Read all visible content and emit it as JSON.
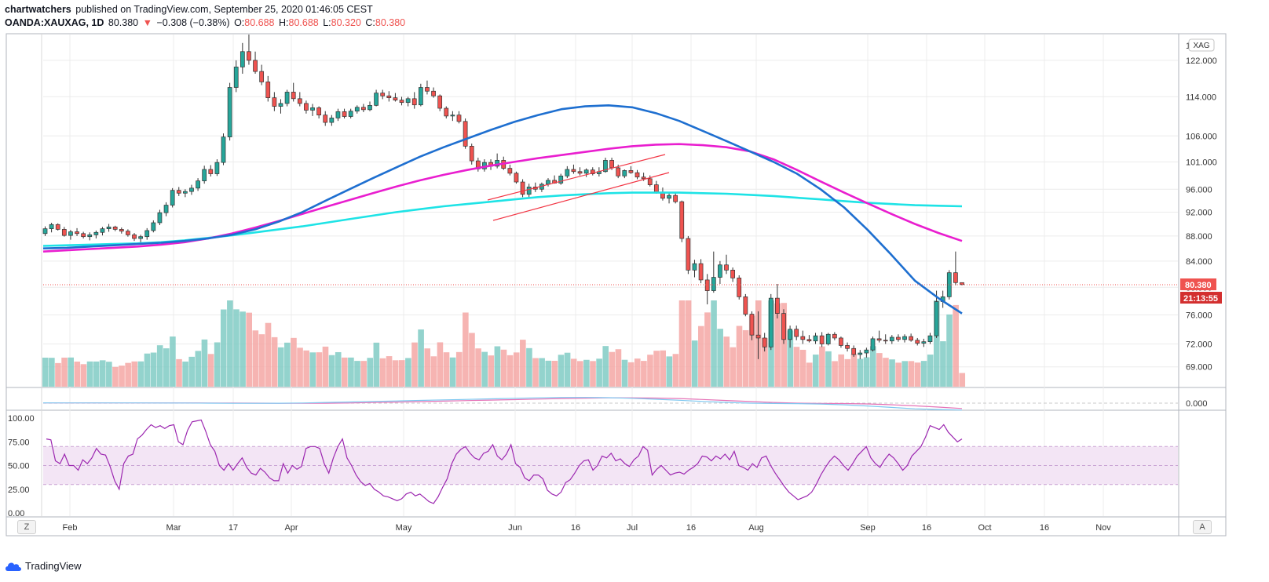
{
  "header": {
    "publisher": "chartwatchers",
    "published_text": "published on TradingView.com, September 25, 2020 01:46:05 CEST",
    "symbol": "OANDA:XAUXAG, 1D",
    "last": "80.380",
    "change_arrow": "▼",
    "change": "−0.308 (−0.38%)",
    "open_label": "O:",
    "open": "80.688",
    "high_label": "H:",
    "high": "80.688",
    "low_label": "L:",
    "low": "80.320",
    "close_label": "C:",
    "close": "80.380"
  },
  "footer": {
    "brand": "TradingView",
    "left_button": "Z",
    "right_button": "A"
  },
  "colors": {
    "up": "#26a69a",
    "down": "#ef5350",
    "ma50": "#1e6fd0",
    "ma100": "#e91ecf",
    "ma200": "#1ee3e6",
    "rsi": "#9c27b0",
    "rsi_band": "#e1bee7",
    "grid": "#ececec"
  },
  "chart_data": {
    "type": "candlestick",
    "symbol": "OANDA:XAUXAG",
    "interval": "1D",
    "currency_label": "XAG",
    "price_axis": {
      "scale": "log",
      "ticks": [
        "69.000",
        "72.000",
        "76.000",
        "80.000",
        "84.000",
        "88.000",
        "92.000",
        "96.000",
        "101.000",
        "106.000",
        "114.000",
        "122.000"
      ],
      "range": [
        66.5,
        128
      ]
    },
    "x_axis": {
      "ticks": [
        "Feb",
        "Mar",
        "17",
        "Apr",
        "May",
        "Jun",
        "16",
        "Jul",
        "16",
        "Aug",
        "Sep",
        "16",
        "Oct",
        "16",
        "Nov"
      ]
    },
    "last_price_label": "80.380",
    "countdown_label": "21:13:55",
    "candles": [
      [
        88.4,
        89.6,
        88.0,
        89.2
      ],
      [
        89.2,
        90.2,
        88.6,
        89.9
      ],
      [
        89.9,
        90.1,
        88.9,
        89.1
      ],
      [
        89.1,
        89.5,
        87.9,
        88.1
      ],
      [
        88.1,
        89.0,
        87.4,
        88.7
      ],
      [
        88.7,
        89.3,
        88.0,
        88.4
      ],
      [
        88.4,
        88.7,
        87.6,
        87.9
      ],
      [
        87.9,
        88.6,
        87.3,
        88.2
      ],
      [
        88.2,
        88.9,
        87.6,
        88.6
      ],
      [
        88.6,
        89.5,
        88.1,
        89.2
      ],
      [
        89.2,
        90.0,
        88.7,
        89.5
      ],
      [
        89.5,
        89.7,
        88.8,
        89.1
      ],
      [
        89.1,
        89.4,
        88.4,
        88.8
      ],
      [
        88.8,
        89.1,
        87.9,
        88.2
      ],
      [
        88.2,
        88.5,
        87.2,
        87.6
      ],
      [
        87.6,
        88.2,
        86.9,
        87.9
      ],
      [
        87.9,
        89.3,
        87.4,
        88.9
      ],
      [
        88.9,
        90.6,
        88.6,
        90.2
      ],
      [
        90.2,
        92.4,
        89.8,
        91.9
      ],
      [
        91.9,
        93.7,
        91.3,
        93.2
      ],
      [
        93.2,
        96.2,
        92.8,
        95.8
      ],
      [
        95.8,
        96.4,
        94.8,
        95.3
      ],
      [
        95.3,
        96.0,
        94.6,
        95.6
      ],
      [
        95.6,
        96.8,
        95.0,
        96.2
      ],
      [
        96.2,
        98.0,
        95.7,
        97.5
      ],
      [
        97.5,
        100.3,
        97.0,
        99.6
      ],
      [
        99.6,
        100.4,
        98.3,
        98.8
      ],
      [
        98.8,
        101.5,
        98.4,
        100.9
      ],
      [
        100.9,
        106.5,
        100.4,
        105.8
      ],
      [
        105.8,
        117.0,
        105.1,
        116.0
      ],
      [
        116.0,
        122.0,
        115.0,
        120.5
      ],
      [
        120.5,
        126.0,
        119.0,
        124.0
      ],
      [
        124.0,
        128.0,
        121.0,
        122.0
      ],
      [
        122.0,
        124.0,
        119.0,
        119.5
      ],
      [
        119.5,
        121.0,
        116.5,
        117.2
      ],
      [
        117.2,
        118.5,
        113.0,
        113.8
      ],
      [
        113.8,
        115.0,
        111.0,
        112.0
      ],
      [
        112.0,
        113.5,
        110.5,
        112.6
      ],
      [
        112.6,
        115.5,
        112.0,
        115.0
      ],
      [
        115.0,
        117.0,
        113.0,
        113.6
      ],
      [
        113.6,
        115.0,
        112.0,
        112.6
      ],
      [
        112.6,
        113.2,
        110.5,
        111.2
      ],
      [
        111.2,
        112.5,
        110.0,
        111.7
      ],
      [
        111.7,
        112.0,
        109.5,
        110.2
      ],
      [
        110.2,
        111.0,
        108.0,
        108.7
      ],
      [
        108.7,
        110.2,
        108.0,
        109.6
      ],
      [
        109.6,
        111.5,
        109.0,
        110.9
      ],
      [
        110.9,
        111.5,
        109.5,
        109.9
      ],
      [
        109.9,
        111.5,
        109.5,
        111.0
      ],
      [
        111.0,
        112.2,
        110.5,
        111.8
      ],
      [
        111.8,
        112.5,
        110.8,
        111.3
      ],
      [
        111.3,
        113.0,
        111.0,
        112.2
      ],
      [
        112.2,
        115.5,
        112.0,
        114.8
      ],
      [
        114.8,
        115.5,
        113.5,
        114.2
      ],
      [
        114.2,
        115.2,
        113.0,
        113.8
      ],
      [
        113.8,
        114.8,
        113.0,
        113.3
      ],
      [
        113.3,
        114.0,
        112.2,
        112.8
      ],
      [
        112.8,
        114.0,
        112.0,
        113.6
      ],
      [
        113.6,
        115.0,
        111.5,
        112.3
      ],
      [
        112.3,
        116.8,
        112.0,
        116.0
      ],
      [
        116.0,
        117.5,
        114.5,
        115.2
      ],
      [
        115.2,
        116.0,
        113.8,
        114.2
      ],
      [
        114.2,
        114.5,
        111.0,
        111.6
      ],
      [
        111.6,
        112.0,
        109.5,
        110.0
      ],
      [
        110.0,
        111.0,
        109.0,
        110.2
      ],
      [
        110.2,
        111.0,
        108.5,
        108.9
      ],
      [
        108.9,
        109.5,
        103.5,
        104.0
      ],
      [
        104.0,
        104.5,
        100.5,
        101.2
      ],
      [
        101.2,
        101.8,
        99.2,
        99.7
      ],
      [
        99.7,
        101.5,
        99.2,
        100.9
      ],
      [
        100.9,
        101.5,
        99.5,
        100.2
      ],
      [
        100.2,
        102.6,
        99.8,
        101.3
      ],
      [
        101.3,
        102.0,
        99.5,
        99.8
      ],
      [
        99.8,
        100.5,
        98.5,
        98.9
      ],
      [
        98.9,
        99.2,
        97.0,
        97.3
      ],
      [
        97.3,
        97.8,
        94.6,
        95.1
      ],
      [
        95.1,
        97.0,
        94.5,
        96.4
      ],
      [
        96.4,
        97.2,
        95.5,
        96.0
      ],
      [
        96.0,
        97.2,
        95.5,
        96.9
      ],
      [
        96.9,
        98.0,
        96.5,
        97.6
      ],
      [
        97.6,
        98.5,
        97.0,
        97.1
      ],
      [
        97.1,
        98.8,
        96.8,
        98.4
      ],
      [
        98.4,
        100.2,
        98.0,
        99.6
      ],
      [
        99.6,
        100.5,
        98.8,
        99.2
      ],
      [
        99.2,
        100.0,
        98.5,
        98.9
      ],
      [
        98.9,
        99.8,
        98.2,
        99.5
      ],
      [
        99.5,
        100.0,
        98.5,
        98.8
      ],
      [
        98.8,
        100.0,
        98.3,
        99.2
      ],
      [
        99.2,
        101.8,
        99.0,
        101.3
      ],
      [
        101.3,
        101.8,
        99.5,
        99.9
      ],
      [
        99.9,
        100.5,
        98.0,
        98.4
      ],
      [
        98.4,
        99.6,
        98.0,
        99.4
      ],
      [
        99.4,
        100.2,
        98.8,
        99.0
      ],
      [
        99.0,
        99.5,
        97.8,
        98.2
      ],
      [
        98.2,
        99.0,
        97.5,
        97.9
      ],
      [
        97.9,
        98.5,
        96.5,
        96.8
      ],
      [
        96.8,
        97.5,
        95.2,
        95.5
      ],
      [
        95.5,
        96.3,
        94.0,
        94.4
      ],
      [
        94.4,
        95.3,
        93.5,
        94.9
      ],
      [
        94.9,
        95.5,
        93.5,
        93.8
      ],
      [
        93.8,
        94.0,
        87.0,
        87.6
      ],
      [
        87.6,
        88.0,
        82.0,
        82.6
      ],
      [
        82.6,
        84.2,
        81.5,
        83.6
      ],
      [
        83.6,
        84.3,
        80.6,
        81.1
      ],
      [
        81.1,
        82.0,
        77.5,
        79.5
      ],
      [
        79.5,
        85.5,
        79.2,
        81.5
      ],
      [
        81.5,
        84.0,
        80.5,
        83.4
      ],
      [
        83.4,
        85.0,
        82.0,
        82.6
      ],
      [
        82.6,
        83.0,
        80.8,
        81.4
      ],
      [
        81.4,
        81.8,
        78.2,
        78.6
      ],
      [
        78.6,
        79.0,
        75.8,
        76.1
      ],
      [
        76.1,
        76.5,
        72.5,
        73.2
      ],
      [
        73.2,
        76.5,
        70.0,
        72.8
      ],
      [
        72.8,
        73.5,
        71.0,
        71.6
      ],
      [
        71.6,
        79.0,
        71.2,
        78.4
      ],
      [
        78.4,
        80.5,
        75.5,
        76.2
      ],
      [
        76.2,
        76.8,
        72.0,
        72.6
      ],
      [
        72.6,
        74.5,
        71.5,
        74.0
      ],
      [
        74.0,
        74.5,
        72.5,
        73.0
      ],
      [
        73.0,
        73.8,
        72.0,
        72.6
      ],
      [
        72.6,
        73.2,
        72.2,
        72.4
      ],
      [
        72.4,
        73.5,
        72.0,
        73.1
      ],
      [
        73.1,
        73.6,
        71.6,
        72.0
      ],
      [
        72.0,
        73.5,
        71.8,
        73.3
      ],
      [
        73.3,
        73.6,
        72.5,
        72.8
      ],
      [
        72.8,
        73.0,
        71.5,
        71.8
      ],
      [
        71.8,
        72.2,
        71.0,
        71.4
      ],
      [
        71.4,
        71.8,
        70.3,
        70.6
      ],
      [
        70.6,
        71.2,
        70.0,
        70.8
      ],
      [
        70.8,
        71.5,
        70.2,
        71.2
      ],
      [
        71.2,
        73.0,
        71.0,
        72.7
      ],
      [
        72.7,
        73.8,
        72.2,
        72.5
      ],
      [
        72.5,
        73.3,
        72.0,
        72.4
      ],
      [
        72.4,
        73.2,
        72.0,
        72.9
      ],
      [
        72.9,
        73.3,
        72.3,
        72.6
      ],
      [
        72.6,
        73.3,
        72.2,
        73.0
      ],
      [
        73.0,
        73.4,
        72.3,
        72.5
      ],
      [
        72.5,
        72.8,
        71.8,
        72.1
      ],
      [
        72.1,
        72.7,
        71.6,
        72.3
      ],
      [
        72.3,
        73.5,
        72.0,
        73.1
      ],
      [
        73.1,
        79.5,
        72.8,
        77.9
      ],
      [
        77.9,
        79.5,
        77.0,
        78.6
      ],
      [
        78.6,
        82.6,
        78.2,
        82.2
      ],
      [
        82.2,
        85.5,
        80.3,
        80.7
      ],
      [
        80.7,
        80.7,
        80.3,
        80.4
      ]
    ],
    "ma50": [
      86.0,
      86.1,
      86.3,
      86.5,
      86.7,
      86.9,
      87.2,
      87.6,
      88.2,
      89.1,
      90.4,
      92.0,
      94.0,
      96.0,
      98.0,
      100.0,
      102.0,
      103.8,
      105.5,
      107.2,
      108.8,
      110.2,
      111.4,
      112.0,
      112.2,
      111.8,
      110.6,
      109.0,
      107.0,
      105.0,
      103.0,
      101.0,
      98.8,
      96.0,
      92.8,
      89.0,
      85.0,
      81.0,
      78.4,
      76.2
    ],
    "ma100": [
      85.5,
      85.7,
      85.9,
      86.1,
      86.3,
      86.6,
      87.0,
      87.6,
      88.4,
      89.4,
      90.5,
      91.7,
      92.9,
      94.1,
      95.3,
      96.5,
      97.6,
      98.6,
      99.5,
      100.3,
      101.0,
      101.7,
      102.3,
      102.9,
      103.5,
      104.0,
      104.3,
      104.4,
      104.2,
      103.8,
      103.0,
      101.5,
      99.5,
      97.4,
      95.4,
      93.5,
      91.7,
      90.0,
      88.5,
      87.2
    ],
    "ma200": [
      86.4,
      86.5,
      86.6,
      86.7,
      86.8,
      87.0,
      87.3,
      87.7,
      88.1,
      88.6,
      89.1,
      89.6,
      90.2,
      90.8,
      91.4,
      92.0,
      92.5,
      93.0,
      93.4,
      93.8,
      94.2,
      94.6,
      94.9,
      95.1,
      95.3,
      95.4,
      95.4,
      95.4,
      95.3,
      95.2,
      95.0,
      94.8,
      94.5,
      94.2,
      93.9,
      93.6,
      93.4,
      93.2,
      93.1,
      93.0
    ],
    "macd_axis": {
      "ticks": [
        "0.000"
      ]
    },
    "rsi_axis": {
      "ticks": [
        "100.00",
        "75.00",
        "50.00",
        "25.00",
        "0.00"
      ],
      "range": [
        0,
        100
      ],
      "band": [
        30,
        70
      ]
    },
    "rsi": [
      78,
      77,
      55,
      52,
      62,
      50,
      50,
      45,
      56,
      52,
      58,
      68,
      62,
      61,
      49,
      34,
      25,
      52,
      60,
      62,
      78,
      82,
      88,
      93,
      90,
      92,
      89,
      92,
      93,
      75,
      72,
      87,
      96,
      97,
      98,
      86,
      72,
      65,
      50,
      45,
      52,
      45,
      52,
      58,
      48,
      42,
      40,
      47,
      43,
      37,
      34,
      34,
      52,
      42,
      50,
      46,
      49,
      68,
      70,
      70,
      68,
      52,
      42,
      58,
      70,
      78,
      58,
      50,
      40,
      33,
      29,
      31,
      25,
      22,
      18,
      17,
      15,
      13,
      15,
      20,
      22,
      18,
      20,
      16,
      12,
      10,
      17,
      27,
      36,
      52,
      62,
      67,
      70,
      63,
      58,
      56,
      63,
      65,
      72,
      60,
      56,
      62,
      72,
      52,
      48,
      37,
      34,
      40,
      40,
      36,
      24,
      20,
      18,
      22,
      32,
      35,
      42,
      50,
      55,
      56,
      45,
      50,
      60,
      58,
      63,
      55,
      57,
      52,
      49,
      56,
      60,
      70,
      66,
      40,
      46,
      50,
      45,
      40,
      42,
      43,
      41,
      45,
      48,
      52,
      60,
      59,
      55,
      60,
      57,
      62,
      56,
      65,
      50,
      48,
      45,
      52,
      48,
      58,
      60,
      50,
      42,
      35,
      28,
      22,
      18,
      14,
      16,
      18,
      22,
      30,
      40,
      48,
      55,
      60,
      56,
      50,
      45,
      52,
      60,
      65,
      70,
      58,
      52,
      48,
      56,
      62,
      58,
      52,
      45,
      50,
      60,
      65,
      70,
      80,
      92,
      90,
      88,
      93,
      85,
      80,
      75,
      78
    ]
  }
}
